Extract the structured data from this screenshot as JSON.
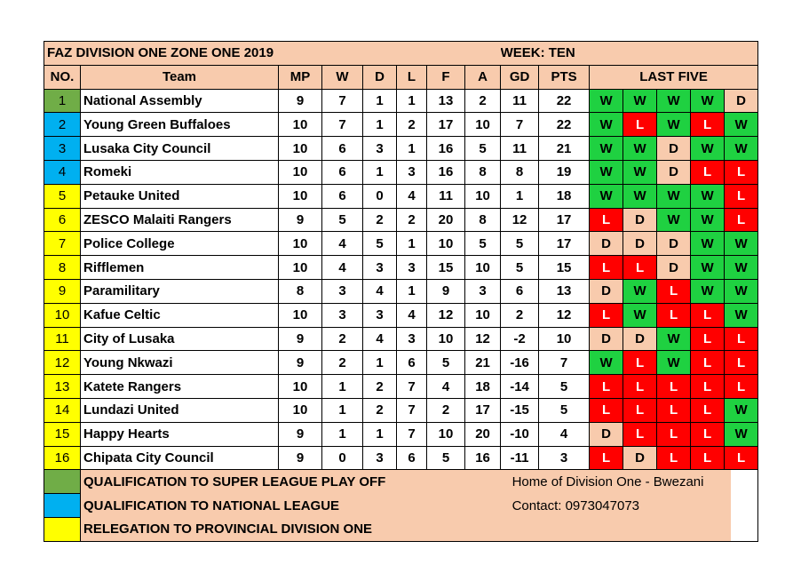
{
  "title": "FAZ DIVISION ONE ZONE ONE 2019",
  "week": "WEEK: TEN",
  "headers": [
    "NO.",
    "Team",
    "MP",
    "W",
    "D",
    "L",
    "F",
    "A",
    "GD",
    "PTS",
    "LAST FIVE"
  ],
  "colors": {
    "qualification_super": "#70ad47",
    "qualification_national": "#00b0f0",
    "relegation": "#ffff00",
    "win": "#1fd141",
    "loss": "#ff0000",
    "draw": "#f8cbad",
    "header": "#f8cbad"
  },
  "rows": [
    {
      "no": "1",
      "team": "National Assembly",
      "mp": "9",
      "w": "7",
      "d": "1",
      "l": "1",
      "f": "13",
      "a": "2",
      "gd": "11",
      "pts": "22",
      "last": [
        "W",
        "W",
        "W",
        "W",
        "D"
      ],
      "zone": "qualification_super"
    },
    {
      "no": "2",
      "team": "Young Green Buffaloes",
      "mp": "10",
      "w": "7",
      "d": "1",
      "l": "2",
      "f": "17",
      "a": "10",
      "gd": "7",
      "pts": "22",
      "last": [
        "W",
        "L",
        "W",
        "L",
        "W"
      ],
      "zone": "qualification_national"
    },
    {
      "no": "3",
      "team": "Lusaka City Council",
      "mp": "10",
      "w": "6",
      "d": "3",
      "l": "1",
      "f": "16",
      "a": "5",
      "gd": "11",
      "pts": "21",
      "last": [
        "W",
        "W",
        "D",
        "W",
        "W"
      ],
      "zone": "qualification_national"
    },
    {
      "no": "4",
      "team": "Romeki",
      "mp": "10",
      "w": "6",
      "d": "1",
      "l": "3",
      "f": "16",
      "a": "8",
      "gd": "8",
      "pts": "19",
      "last": [
        "W",
        "W",
        "D",
        "L",
        "L"
      ],
      "zone": "qualification_national"
    },
    {
      "no": "5",
      "team": "Petauke United",
      "mp": "10",
      "w": "6",
      "d": "0",
      "l": "4",
      "f": "11",
      "a": "10",
      "gd": "1",
      "pts": "18",
      "last": [
        "W",
        "W",
        "W",
        "W",
        "L"
      ],
      "zone": "relegation"
    },
    {
      "no": "6",
      "team": "ZESCO Malaiti Rangers",
      "mp": "9",
      "w": "5",
      "d": "2",
      "l": "2",
      "f": "20",
      "a": "8",
      "gd": "12",
      "pts": "17",
      "last": [
        "L",
        "D",
        "W",
        "W",
        "L"
      ],
      "zone": "relegation"
    },
    {
      "no": "7",
      "team": "Police College",
      "mp": "10",
      "w": "4",
      "d": "5",
      "l": "1",
      "f": "10",
      "a": "5",
      "gd": "5",
      "pts": "17",
      "last": [
        "D",
        "D",
        "D",
        "W",
        "W"
      ],
      "zone": "relegation"
    },
    {
      "no": "8",
      "team": "Rifflemen",
      "mp": "10",
      "w": "4",
      "d": "3",
      "l": "3",
      "f": "15",
      "a": "10",
      "gd": "5",
      "pts": "15",
      "last": [
        "L",
        "L",
        "D",
        "W",
        "W"
      ],
      "zone": "relegation"
    },
    {
      "no": "9",
      "team": "Paramilitary",
      "mp": "8",
      "w": "3",
      "d": "4",
      "l": "1",
      "f": "9",
      "a": "3",
      "gd": "6",
      "pts": "13",
      "last": [
        "D",
        "W",
        "L",
        "W",
        "W"
      ],
      "zone": "relegation"
    },
    {
      "no": "10",
      "team": "Kafue Celtic",
      "mp": "10",
      "w": "3",
      "d": "3",
      "l": "4",
      "f": "12",
      "a": "10",
      "gd": "2",
      "pts": "12",
      "last": [
        "L",
        "W",
        "L",
        "L",
        "W"
      ],
      "zone": "relegation"
    },
    {
      "no": "11",
      "team": "City of Lusaka",
      "mp": "9",
      "w": "2",
      "d": "4",
      "l": "3",
      "f": "10",
      "a": "12",
      "gd": "-2",
      "pts": "10",
      "last": [
        "D",
        "D",
        "W",
        "L",
        "L"
      ],
      "zone": "relegation"
    },
    {
      "no": "12",
      "team": "Young Nkwazi",
      "mp": "9",
      "w": "2",
      "d": "1",
      "l": "6",
      "f": "5",
      "a": "21",
      "gd": "-16",
      "pts": "7",
      "last": [
        "W",
        "L",
        "W",
        "L",
        "L"
      ],
      "zone": "relegation"
    },
    {
      "no": "13",
      "team": "Katete Rangers",
      "mp": "10",
      "w": "1",
      "d": "2",
      "l": "7",
      "f": "4",
      "a": "18",
      "gd": "-14",
      "pts": "5",
      "last": [
        "L",
        "L",
        "L",
        "L",
        "L"
      ],
      "zone": "relegation"
    },
    {
      "no": "14",
      "team": "Lundazi United",
      "mp": "10",
      "w": "1",
      "d": "2",
      "l": "7",
      "f": "2",
      "a": "17",
      "gd": "-15",
      "pts": "5",
      "last": [
        "L",
        "L",
        "L",
        "L",
        "W"
      ],
      "zone": "relegation"
    },
    {
      "no": "15",
      "team": "Happy Hearts",
      "mp": "9",
      "w": "1",
      "d": "1",
      "l": "7",
      "f": "10",
      "a": "20",
      "gd": "-10",
      "pts": "4",
      "last": [
        "D",
        "L",
        "L",
        "L",
        "W"
      ],
      "zone": "relegation"
    },
    {
      "no": "16",
      "team": "Chipata City Council",
      "mp": "9",
      "w": "0",
      "d": "3",
      "l": "6",
      "f": "5",
      "a": "16",
      "gd": "-11",
      "pts": "3",
      "last": [
        "L",
        "D",
        "L",
        "L",
        "L"
      ],
      "zone": "relegation"
    }
  ],
  "legend": [
    {
      "label": "QUALIFICATION TO SUPER LEAGUE PLAY OFF",
      "zone": "qualification_super"
    },
    {
      "label": "QUALIFICATION TO NATIONAL LEAGUE",
      "zone": "qualification_national"
    },
    {
      "label": "RELEGATION  TO PROVINCIAL DIVISION ONE",
      "zone": "relegation"
    }
  ],
  "info": {
    "home": "Home of Division One - Bwezani",
    "contact": "Contact: 0973047073"
  }
}
